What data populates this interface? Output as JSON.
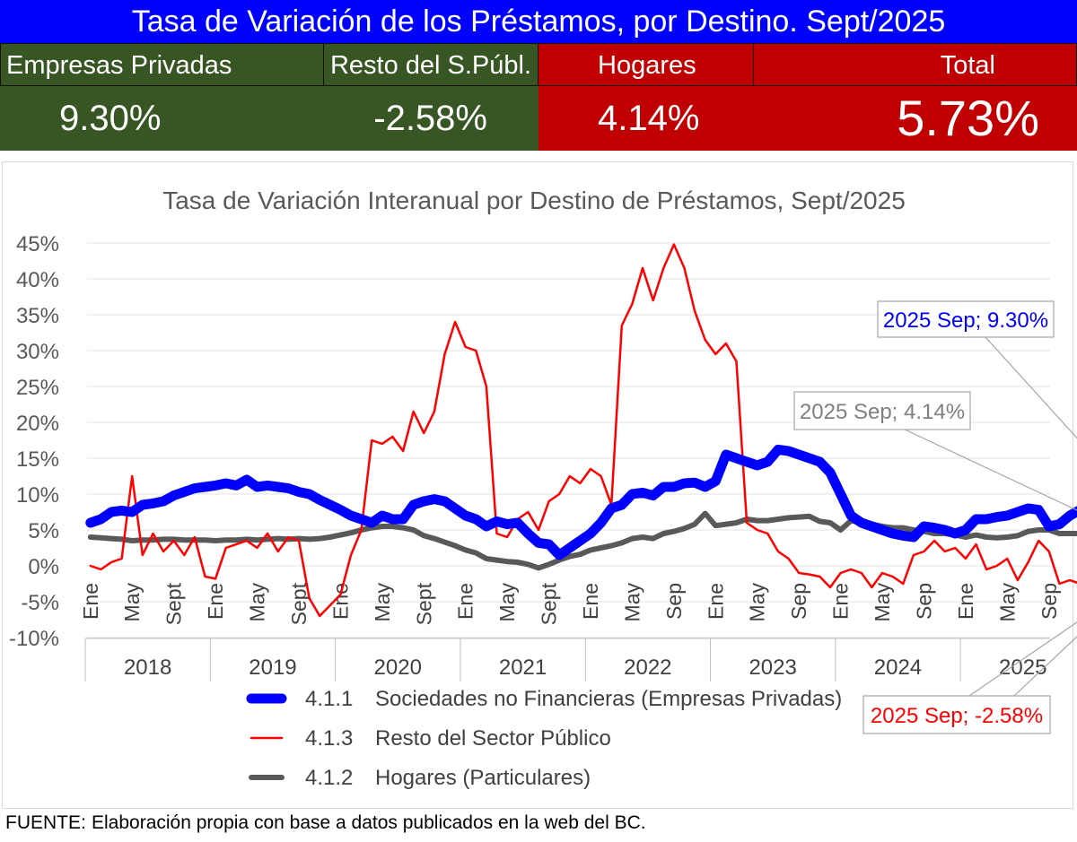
{
  "header": {
    "title": "Tasa de Variación de los Préstamos, por Destino.  Sept/2025",
    "cols": [
      {
        "label": "Empresas Privadas",
        "value": "9.30%"
      },
      {
        "label": "Resto del S.Públ.",
        "value": "-2.58%"
      },
      {
        "label": "Hogares",
        "value": "4.14%"
      },
      {
        "label": "Total",
        "value": "5.73%"
      }
    ],
    "colors": {
      "title_bg": "#0000ff",
      "green": "#375623",
      "red": "#c00000"
    }
  },
  "chart_data": {
    "type": "line",
    "title": "Tasa de Variación Interanual por Destino de Préstamos, Sept/2025",
    "ylim": [
      -10,
      45
    ],
    "y_ticks": [
      "-10%",
      "-5%",
      "0%",
      "5%",
      "10%",
      "15%",
      "20%",
      "25%",
      "30%",
      "35%",
      "40%",
      "45%"
    ],
    "month_labels": [
      "Ene",
      "May",
      "Sept",
      "Ene",
      "May",
      "Sept",
      "Ene",
      "May",
      "Sept",
      "Ene",
      "May",
      "Sept",
      "Ene",
      "May",
      "Sep",
      "Ene",
      "May",
      "Sep",
      "Ene",
      "May",
      "Sep",
      "Ene",
      "May",
      "Sep"
    ],
    "years": [
      "2018",
      "2019",
      "2020",
      "2021",
      "2022",
      "2023",
      "2024",
      "2025"
    ],
    "series": [
      {
        "name": "Sociedades no Financieras (Empresas Privadas)",
        "code": "4.1.1",
        "color": "#0000ff",
        "values": [
          6.0,
          6.5,
          7.5,
          7.7,
          7.5,
          8.5,
          8.7,
          9.0,
          9.8,
          10.3,
          10.8,
          11.0,
          11.2,
          11.5,
          11.2,
          12.0,
          11.0,
          11.2,
          11.0,
          10.8,
          10.3,
          10.0,
          9.2,
          8.5,
          7.8,
          7.0,
          6.5,
          6.0,
          7.0,
          6.5,
          6.5,
          8.5,
          9.0,
          9.3,
          9.0,
          8.0,
          7.0,
          6.5,
          5.5,
          6.2,
          5.8,
          6.0,
          4.5,
          3.2,
          3.0,
          1.5,
          2.5,
          3.5,
          4.5,
          6.0,
          8.0,
          8.5,
          10.0,
          10.2,
          9.8,
          11.0,
          11.0,
          11.5,
          11.6,
          11.0,
          11.8,
          15.5,
          15.0,
          14.5,
          14.0,
          14.5,
          16.2,
          16.0,
          15.5,
          15.0,
          14.5,
          13.0,
          10.0,
          7.0,
          6.0,
          5.5,
          5.0,
          4.5,
          4.2,
          4.0,
          5.5,
          5.3,
          5.0,
          4.5,
          5.0,
          6.5,
          6.5,
          6.8,
          7.0,
          7.5,
          8.0,
          7.8,
          5.5,
          5.8,
          7.0,
          7.8,
          8.0,
          7.8,
          8.0,
          9.0,
          9.3
        ]
      },
      {
        "name": "Resto del Sector Público",
        "code": "4.1.3",
        "color": "#ff0000",
        "values": [
          0.0,
          -0.5,
          0.5,
          1.0,
          12.5,
          1.5,
          4.5,
          2.0,
          3.5,
          1.5,
          4.0,
          -1.5,
          -1.8,
          2.5,
          3.0,
          3.5,
          2.5,
          4.5,
          2.0,
          4.0,
          3.5,
          -4.5,
          -7.0,
          -5.5,
          -4.0,
          1.5,
          5.0,
          17.5,
          17.0,
          18.0,
          16.0,
          21.5,
          18.5,
          21.5,
          29.5,
          34.0,
          30.5,
          30.0,
          25.0,
          4.5,
          4.0,
          6.5,
          7.5,
          5.0,
          9.0,
          10.0,
          12.5,
          11.5,
          13.5,
          12.5,
          8.5,
          33.5,
          36.5,
          41.5,
          37.0,
          41.5,
          44.8,
          41.5,
          35.5,
          31.5,
          29.5,
          31.0,
          28.5,
          6.0,
          5.0,
          4.5,
          2.0,
          1.0,
          -1.0,
          -1.2,
          -1.5,
          -3.0,
          -1.0,
          -0.5,
          -1.0,
          -3.0,
          -1.0,
          -1.5,
          -2.5,
          1.5,
          2.0,
          3.5,
          2.0,
          2.5,
          1.0,
          3.0,
          -0.5,
          0.0,
          1.0,
          -2.0,
          0.5,
          3.5,
          2.0,
          -2.5,
          -2.0,
          -2.5,
          -2.5,
          -4.5,
          -2.5,
          -5.5,
          -2.58
        ]
      },
      {
        "name": "Hogares (Particulares)",
        "code": "4.1.2",
        "color": "#595959",
        "values": [
          4.0,
          3.9,
          3.8,
          3.7,
          3.5,
          3.6,
          3.6,
          3.7,
          3.7,
          3.6,
          3.6,
          3.6,
          3.5,
          3.6,
          3.6,
          3.7,
          3.6,
          3.7,
          3.8,
          3.7,
          3.8,
          3.7,
          3.8,
          4.0,
          4.3,
          4.6,
          5.0,
          5.3,
          5.5,
          5.5,
          5.3,
          5.0,
          4.2,
          3.8,
          3.3,
          2.8,
          2.2,
          1.8,
          1.0,
          0.8,
          0.6,
          0.5,
          0.2,
          -0.3,
          0.2,
          0.8,
          1.3,
          1.6,
          2.2,
          2.5,
          2.8,
          3.2,
          3.8,
          4.0,
          3.8,
          4.5,
          4.8,
          5.2,
          5.8,
          7.3,
          5.6,
          5.8,
          6.0,
          6.5,
          6.3,
          6.3,
          6.5,
          6.7,
          6.8,
          6.9,
          6.2,
          6.0,
          5.0,
          6.3,
          6.0,
          5.8,
          5.5,
          5.3,
          5.3,
          5.0,
          4.8,
          4.5,
          4.5,
          4.3,
          4.0,
          4.3,
          4.0,
          3.9,
          4.0,
          4.2,
          4.8,
          5.0,
          5.0,
          4.5,
          4.5,
          4.5,
          4.3,
          4.2,
          4.2,
          4.1,
          4.14
        ]
      }
    ],
    "annotations": [
      {
        "text": "2025 Sep; 9.30%",
        "color": "#0000ff"
      },
      {
        "text": "2025 Sep; 4.14%",
        "color": "#808080"
      },
      {
        "text": "2025 Sep; -2.58%",
        "color": "#ff0000"
      }
    ]
  },
  "footer": {
    "label": "FUENTE:",
    "text": "Elaboración propia con base a datos publicados en la web del BC."
  }
}
